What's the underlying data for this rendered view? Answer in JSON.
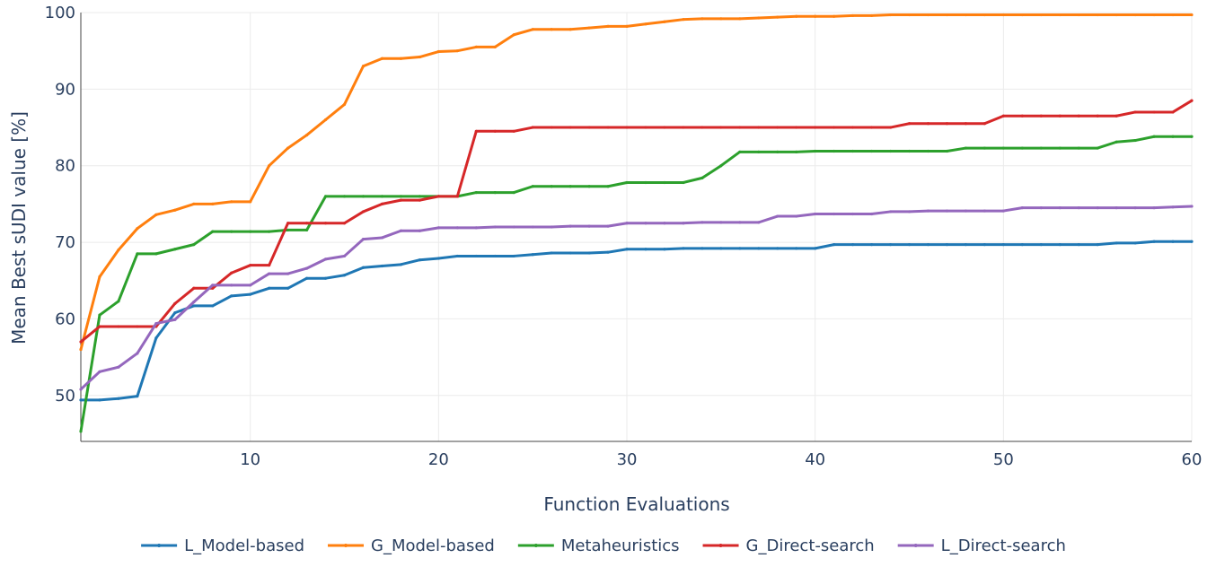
{
  "chart_data": {
    "type": "line",
    "xlabel": "Function Evaluations",
    "ylabel": "Mean Best sUDI value [%]",
    "xlim": [
      1,
      60
    ],
    "ylim": [
      44,
      100
    ],
    "x_ticks": [
      10,
      20,
      30,
      40,
      50,
      60
    ],
    "y_ticks": [
      50,
      60,
      70,
      80,
      90,
      100
    ],
    "grid": true,
    "legend_position": "bottom",
    "series": [
      {
        "name": "L_Model-based",
        "color": "#1f77b4",
        "values": [
          49.4,
          49.4,
          49.6,
          49.9,
          57.5,
          60.8,
          61.7,
          61.7,
          63.0,
          63.2,
          64.0,
          64.0,
          65.3,
          65.3,
          65.7,
          66.7,
          66.9,
          67.1,
          67.7,
          67.9,
          68.2,
          68.2,
          68.2,
          68.2,
          68.4,
          68.6,
          68.6,
          68.6,
          68.7,
          69.1,
          69.1,
          69.1,
          69.2,
          69.2,
          69.2,
          69.2,
          69.2,
          69.2,
          69.2,
          69.2,
          69.7,
          69.7,
          69.7,
          69.7,
          69.7,
          69.7,
          69.7,
          69.7,
          69.7,
          69.7,
          69.7,
          69.7,
          69.7,
          69.7,
          69.7,
          69.9,
          69.9,
          70.1,
          70.1,
          70.1
        ]
      },
      {
        "name": "G_Model-based",
        "color": "#ff7f0e",
        "values": [
          56.0,
          65.5,
          69.0,
          71.8,
          73.6,
          74.2,
          75.0,
          75.0,
          75.3,
          75.3,
          80.0,
          82.3,
          84.0,
          86.0,
          88.0,
          93.0,
          94.0,
          94.0,
          94.2,
          94.9,
          95.0,
          95.5,
          95.5,
          97.1,
          97.8,
          97.8,
          97.8,
          98.0,
          98.2,
          98.2,
          98.5,
          98.8,
          99.1,
          99.2,
          99.2,
          99.2,
          99.3,
          99.4,
          99.5,
          99.5,
          99.5,
          99.6,
          99.6,
          99.7,
          99.7,
          99.7,
          99.7,
          99.7,
          99.7,
          99.7,
          99.7,
          99.7,
          99.7,
          99.7,
          99.7,
          99.7,
          99.7,
          99.7,
          99.7,
          99.7
        ]
      },
      {
        "name": "Metaheuristics",
        "color": "#2ca02c",
        "values": [
          45.3,
          60.5,
          62.3,
          68.5,
          68.5,
          69.1,
          69.7,
          71.4,
          71.4,
          71.4,
          71.4,
          71.6,
          71.6,
          76.0,
          76.0,
          76.0,
          76.0,
          76.0,
          76.0,
          76.0,
          76.0,
          76.5,
          76.5,
          76.5,
          77.3,
          77.3,
          77.3,
          77.3,
          77.3,
          77.8,
          77.8,
          77.8,
          77.8,
          78.4,
          80.0,
          81.8,
          81.8,
          81.8,
          81.8,
          81.9,
          81.9,
          81.9,
          81.9,
          81.9,
          81.9,
          81.9,
          81.9,
          82.3,
          82.3,
          82.3,
          82.3,
          82.3,
          82.3,
          82.3,
          82.3,
          83.1,
          83.3,
          83.8,
          83.8,
          83.8
        ]
      },
      {
        "name": "G_Direct-search",
        "color": "#d62728",
        "values": [
          57.0,
          59.0,
          59.0,
          59.0,
          59.0,
          62.0,
          64.0,
          64.0,
          66.0,
          67.0,
          67.0,
          72.5,
          72.5,
          72.5,
          72.5,
          74.0,
          75.0,
          75.5,
          75.5,
          76.0,
          76.0,
          84.5,
          84.5,
          84.5,
          85.0,
          85.0,
          85.0,
          85.0,
          85.0,
          85.0,
          85.0,
          85.0,
          85.0,
          85.0,
          85.0,
          85.0,
          85.0,
          85.0,
          85.0,
          85.0,
          85.0,
          85.0,
          85.0,
          85.0,
          85.5,
          85.5,
          85.5,
          85.5,
          85.5,
          86.5,
          86.5,
          86.5,
          86.5,
          86.5,
          86.5,
          86.5,
          87.0,
          87.0,
          87.0,
          88.5
        ]
      },
      {
        "name": "L_Direct-search",
        "color": "#9467bd",
        "values": [
          50.8,
          53.1,
          53.7,
          55.5,
          59.4,
          59.9,
          62.2,
          64.4,
          64.4,
          64.4,
          65.9,
          65.9,
          66.6,
          67.8,
          68.2,
          70.4,
          70.6,
          71.5,
          71.5,
          71.9,
          71.9,
          71.9,
          72.0,
          72.0,
          72.0,
          72.0,
          72.1,
          72.1,
          72.1,
          72.5,
          72.5,
          72.5,
          72.5,
          72.6,
          72.6,
          72.6,
          72.6,
          73.4,
          73.4,
          73.7,
          73.7,
          73.7,
          73.7,
          74.0,
          74.0,
          74.1,
          74.1,
          74.1,
          74.1,
          74.1,
          74.5,
          74.5,
          74.5,
          74.5,
          74.5,
          74.5,
          74.5,
          74.5,
          74.6,
          74.7
        ]
      }
    ]
  }
}
